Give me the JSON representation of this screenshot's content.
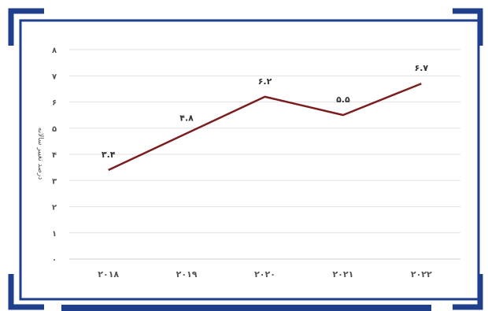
{
  "colors": {
    "frame": "#1f3e8c",
    "line": "#7b1e1e",
    "grid": "#e2e2e2"
  },
  "chart_data": {
    "type": "line",
    "categories": [
      "۲۰۱۸",
      "۲۰۱۹",
      "۲۰۲۰",
      "۲۰۲۱",
      "۲۰۲۲"
    ],
    "series": [
      {
        "values": [
          3.4,
          4.8,
          6.2,
          5.5,
          6.7
        ],
        "labels": [
          "۳.۴",
          "۴.۸",
          "۶.۲",
          "۵.۵",
          "۶.۷"
        ]
      }
    ],
    "ylabel": "درصد تغییر سالانه",
    "ylim": [
      0,
      8
    ],
    "yticks": [
      "۰",
      "۱",
      "۲",
      "۳",
      "۴",
      "۵",
      "۶",
      "۷",
      "۸"
    ],
    "grid": true,
    "legend": "none"
  }
}
